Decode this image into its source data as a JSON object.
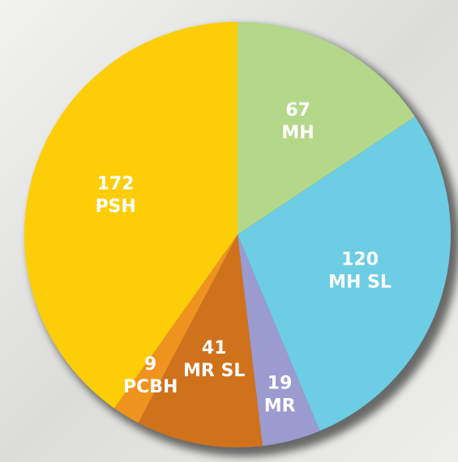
{
  "chart_data": {
    "type": "pie",
    "categories": [
      "MH",
      "MH SL",
      "MR",
      "MR SL",
      "PCBH",
      "PSH"
    ],
    "values": [
      67,
      120,
      19,
      41,
      9,
      172
    ],
    "colors": [
      "#b4d88a",
      "#6ccde4",
      "#9c9bcf",
      "#d0721c",
      "#f0921e",
      "#fdcd08"
    ]
  }
}
